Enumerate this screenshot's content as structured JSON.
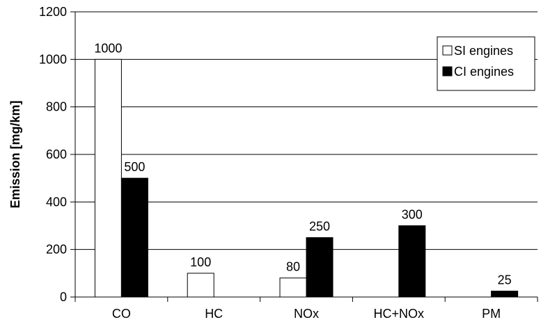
{
  "chart_data": {
    "type": "bar",
    "categories": [
      "CO",
      "HC",
      "NOx",
      "HC+NOx",
      "PM"
    ],
    "series": [
      {
        "name": "SI engines",
        "values": [
          1000,
          100,
          80,
          null,
          null
        ],
        "color": "#ffffff"
      },
      {
        "name": "CI engines",
        "values": [
          500,
          null,
          250,
          300,
          25
        ],
        "color": "#000000"
      }
    ],
    "ylabel": "Emission [mg/km]",
    "xlabel": "",
    "ylim": [
      0,
      1200
    ],
    "yticks": [
      0,
      200,
      400,
      600,
      800,
      1000,
      1200
    ],
    "grid": true,
    "legend_position": "top-right"
  }
}
